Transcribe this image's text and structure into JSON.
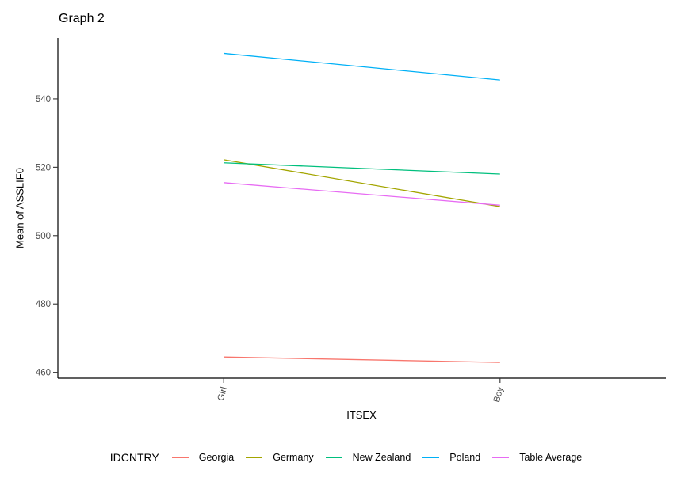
{
  "chart_data": {
    "type": "line",
    "title": "Graph 2",
    "xlabel": "ITSEX",
    "ylabel": "Mean of ASSLIF0",
    "legend_title": "IDCNTRY",
    "legend_position": "bottom",
    "grid": false,
    "categories": [
      "Girl",
      "Boy"
    ],
    "series": [
      {
        "name": "Georgia",
        "color": "#F8766D",
        "values": [
          464.5,
          462.9
        ]
      },
      {
        "name": "Germany",
        "color": "#A3A500",
        "values": [
          522.2,
          508.5
        ]
      },
      {
        "name": "New Zealand",
        "color": "#00BF7D",
        "values": [
          521.3,
          518.0
        ]
      },
      {
        "name": "Poland",
        "color": "#00B0F6",
        "values": [
          553.3,
          545.5
        ]
      },
      {
        "name": "Table Average",
        "color": "#E76BF3",
        "values": [
          515.5,
          508.9
        ]
      }
    ],
    "yticks": [
      460,
      480,
      500,
      520,
      540
    ],
    "ylim": [
      458.3,
      557.8
    ],
    "axis_color": "#000000",
    "tick_label_color": "#4d4d4d"
  }
}
